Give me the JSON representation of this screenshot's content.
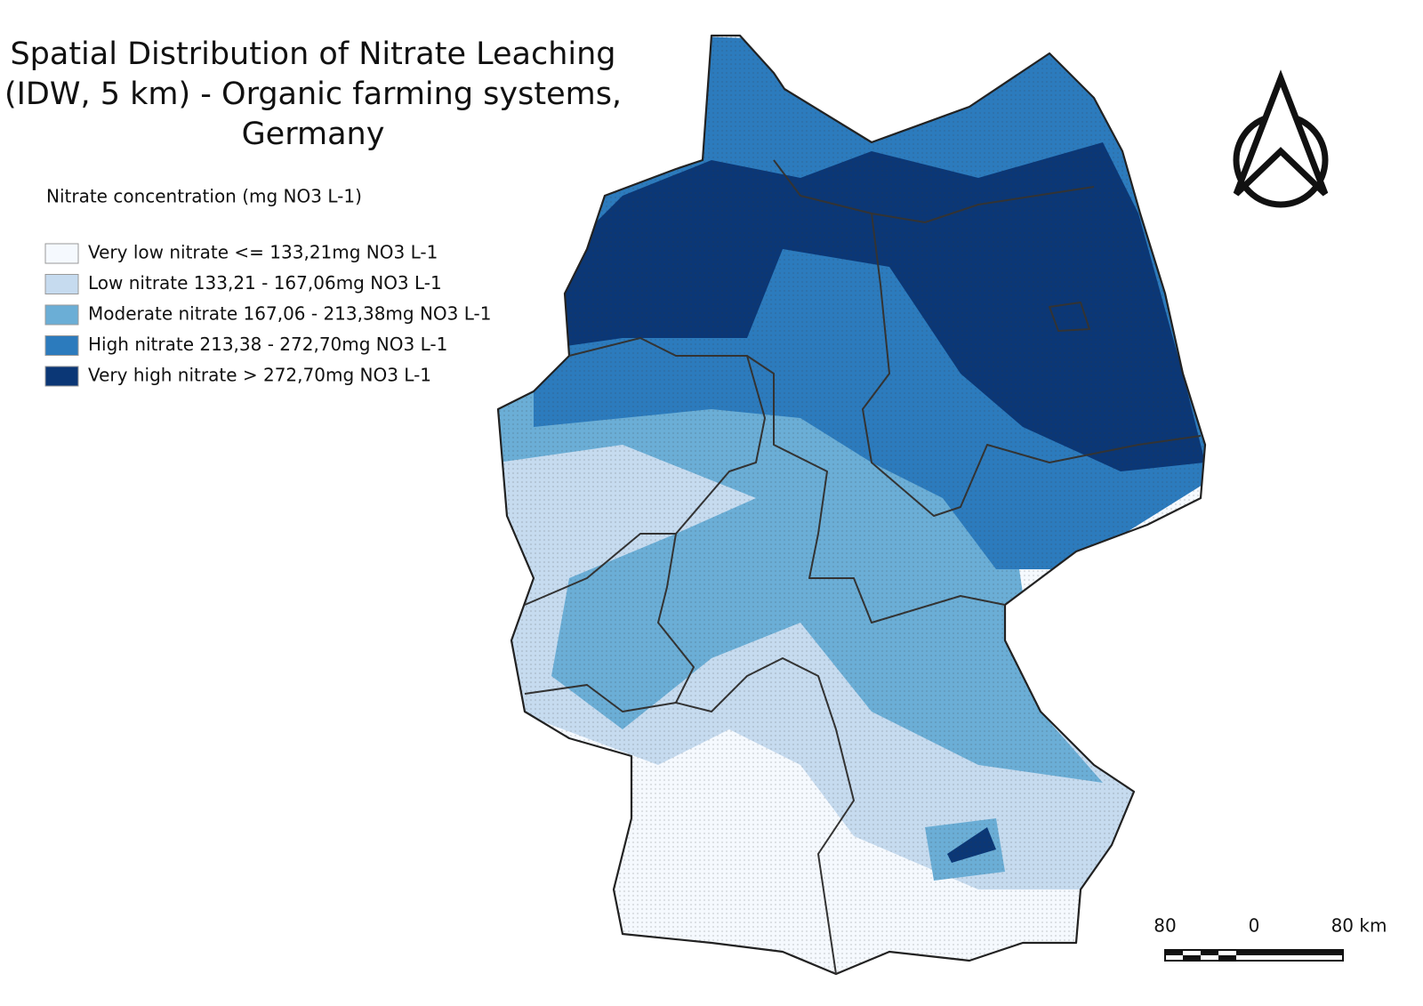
{
  "title_lines": [
    "Spatial Distribution of Nitrate Leaching",
    "(IDW, 5 km) - Organic farming systems,",
    "Germany"
  ],
  "legend": {
    "title": "Nitrate concentration (mg NO3 L-1)",
    "items": [
      {
        "label": "Very low nitrate  <= 133,21mg NO3 L-1",
        "color": "#f5f9fe"
      },
      {
        "label": "Low nitrate  133,21 - 167,06mg NO3 L-1",
        "color": "#c6dbef"
      },
      {
        "label": "Moderate nitrate  167,06 - 213,38mg NO3 L-1",
        "color": "#6baed6"
      },
      {
        "label": "High nitrate  213,38 - 272,70mg NO3 L-1",
        "color": "#2c7bbd"
      },
      {
        "label": "Very high nitrate  > 272,70mg NO3 L-1",
        "color": "#0b3776"
      }
    ]
  },
  "scale_bar": {
    "labels": [
      "80",
      "0",
      "80 km"
    ]
  }
}
